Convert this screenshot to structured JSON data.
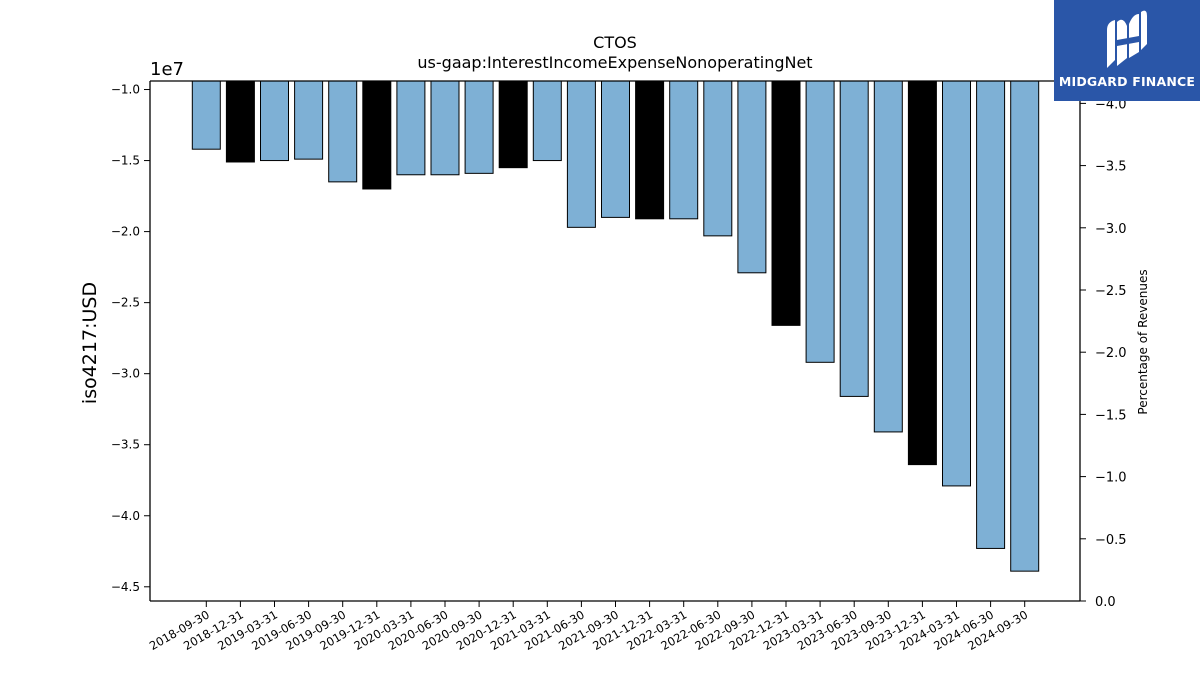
{
  "chart_data": {
    "type": "bar",
    "title": "CTOS",
    "subtitle": "us-gaap:InterestIncomeExpenseNonoperatingNet",
    "ylabel": "iso4217:USD",
    "y_offset_label": "1e7",
    "y2label": "Percentage of Revenues",
    "ylim": [
      -4.6,
      -0.94
    ],
    "y_ticks": [
      -1.0,
      -1.5,
      -2.0,
      -2.5,
      -3.0,
      -3.5,
      -4.0,
      -4.5
    ],
    "y_tick_labels": [
      "−1.0",
      "−1.5",
      "−2.0",
      "−2.5",
      "−3.0",
      "−3.5",
      "−4.0",
      "−4.5"
    ],
    "y2lim": [
      0.0,
      4.18
    ],
    "y2_ticks": [
      0.0,
      0.5,
      1.0,
      1.5,
      2.0,
      2.5,
      3.0,
      3.5,
      4.0
    ],
    "y2_tick_labels": [
      "0.0",
      "−0.5",
      "−1.0",
      "−1.5",
      "−2.0",
      "−2.5",
      "−3.0",
      "−3.5",
      "−4.0"
    ],
    "categories": [
      "2018-09-30",
      "2018-12-31",
      "2019-03-31",
      "2019-06-30",
      "2019-09-30",
      "2019-12-31",
      "2020-03-31",
      "2020-06-30",
      "2020-09-30",
      "2020-12-31",
      "2021-03-31",
      "2021-06-30",
      "2021-09-30",
      "2021-12-31",
      "2022-03-31",
      "2022-06-30",
      "2022-09-30",
      "2022-12-31",
      "2023-03-31",
      "2023-06-30",
      "2023-09-30",
      "2023-12-31",
      "2024-03-31",
      "2024-06-30",
      "2024-09-30"
    ],
    "values": [
      -1.42,
      -1.51,
      -1.5,
      -1.49,
      -1.65,
      -1.7,
      -1.6,
      -1.6,
      -1.59,
      -1.55,
      -1.5,
      -1.97,
      -1.9,
      -1.91,
      -1.91,
      -2.03,
      -2.29,
      -2.66,
      -2.92,
      -3.16,
      -3.41,
      -3.64,
      -3.79,
      -4.23,
      -4.39
    ],
    "highlight": [
      false,
      true,
      false,
      false,
      false,
      true,
      false,
      false,
      false,
      true,
      false,
      false,
      false,
      true,
      false,
      false,
      false,
      true,
      false,
      false,
      false,
      true,
      false,
      false,
      false
    ],
    "colors": {
      "bar": "#7eb0d5",
      "highlight": "#000000",
      "edge": "#000000"
    },
    "grid": false,
    "legend": "none"
  },
  "logo": {
    "text": "MIDGARD FINANCE",
    "icon": "midgard-logo-icon",
    "bg": "#2a56a8"
  }
}
